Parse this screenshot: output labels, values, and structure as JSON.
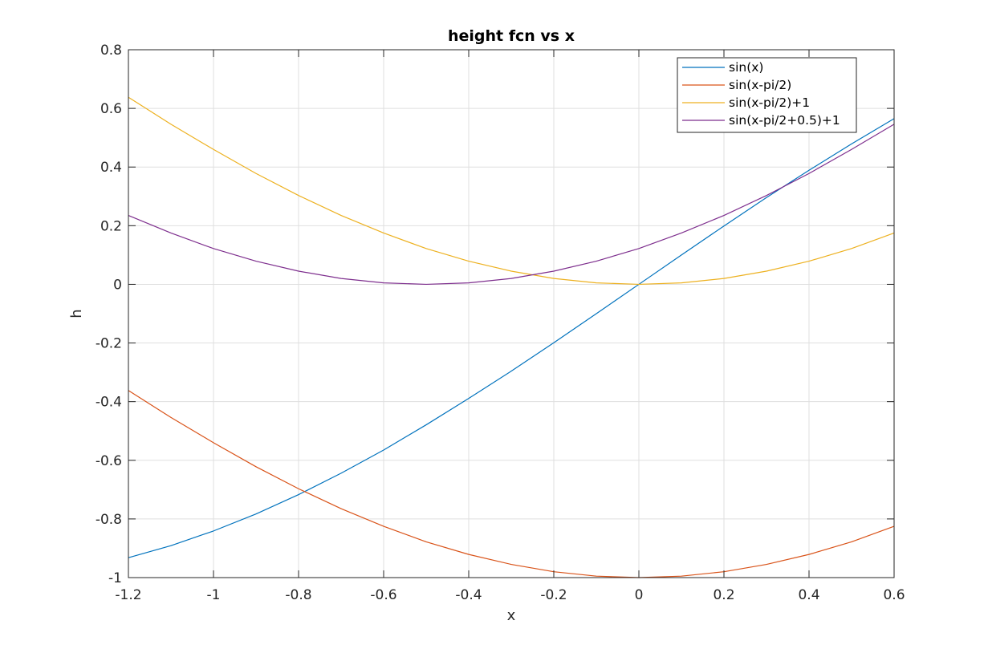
{
  "chart_data": {
    "type": "line",
    "title": "height fcn vs x",
    "xlabel": "x",
    "ylabel": "h",
    "xlim": [
      -1.2,
      0.6
    ],
    "ylim": [
      -1,
      0.8
    ],
    "xticks": [
      -1.2,
      -1,
      -0.8,
      -0.6,
      -0.4,
      -0.2,
      0,
      0.2,
      0.4,
      0.6
    ],
    "xtick_labels": [
      "-1.2",
      "-1",
      "-0.8",
      "-0.6",
      "-0.4",
      "-0.2",
      "0",
      "0.2",
      "0.4",
      "0.6"
    ],
    "yticks": [
      -1,
      -0.8,
      -0.6,
      -0.4,
      -0.2,
      0,
      0.2,
      0.4,
      0.6,
      0.8
    ],
    "ytick_labels": [
      "-1",
      "-0.8",
      "-0.6",
      "-0.4",
      "-0.2",
      "0",
      "0.2",
      "0.4",
      "0.6",
      "0.8"
    ],
    "grid": true,
    "legend_position": "top-right",
    "x": [
      -1.2,
      -1.1,
      -1.0,
      -0.9,
      -0.8,
      -0.7,
      -0.6,
      -0.5,
      -0.4,
      -0.3,
      -0.2,
      -0.1,
      0.0,
      0.1,
      0.2,
      0.3,
      0.4,
      0.5,
      0.6
    ],
    "series": [
      {
        "name": "sin(x)",
        "color": "#0072BD",
        "values": [
          -0.932,
          -0.891,
          -0.841,
          -0.783,
          -0.717,
          -0.644,
          -0.565,
          -0.479,
          -0.389,
          -0.296,
          -0.199,
          -0.1,
          0.0,
          0.1,
          0.199,
          0.296,
          0.389,
          0.479,
          0.565
        ]
      },
      {
        "name": "sin(x-pi/2)",
        "color": "#D95319",
        "values": [
          -0.362,
          -0.454,
          -0.54,
          -0.622,
          -0.697,
          -0.765,
          -0.825,
          -0.878,
          -0.921,
          -0.955,
          -0.98,
          -0.995,
          -1.0,
          -0.995,
          -0.98,
          -0.955,
          -0.921,
          -0.878,
          -0.825
        ]
      },
      {
        "name": "sin(x-pi/2)+1",
        "color": "#EDB120",
        "values": [
          0.638,
          0.546,
          0.46,
          0.378,
          0.303,
          0.235,
          0.175,
          0.122,
          0.079,
          0.045,
          0.02,
          0.005,
          0.0,
          0.005,
          0.02,
          0.045,
          0.079,
          0.122,
          0.175
        ]
      },
      {
        "name": "sin(x-pi/2+0.5)+1",
        "color": "#7E2F8E",
        "values": [
          0.235,
          0.175,
          0.122,
          0.079,
          0.045,
          0.02,
          0.005,
          0.0,
          0.005,
          0.02,
          0.045,
          0.079,
          0.122,
          0.175,
          0.235,
          0.303,
          0.378,
          0.46,
          0.546
        ]
      }
    ]
  }
}
